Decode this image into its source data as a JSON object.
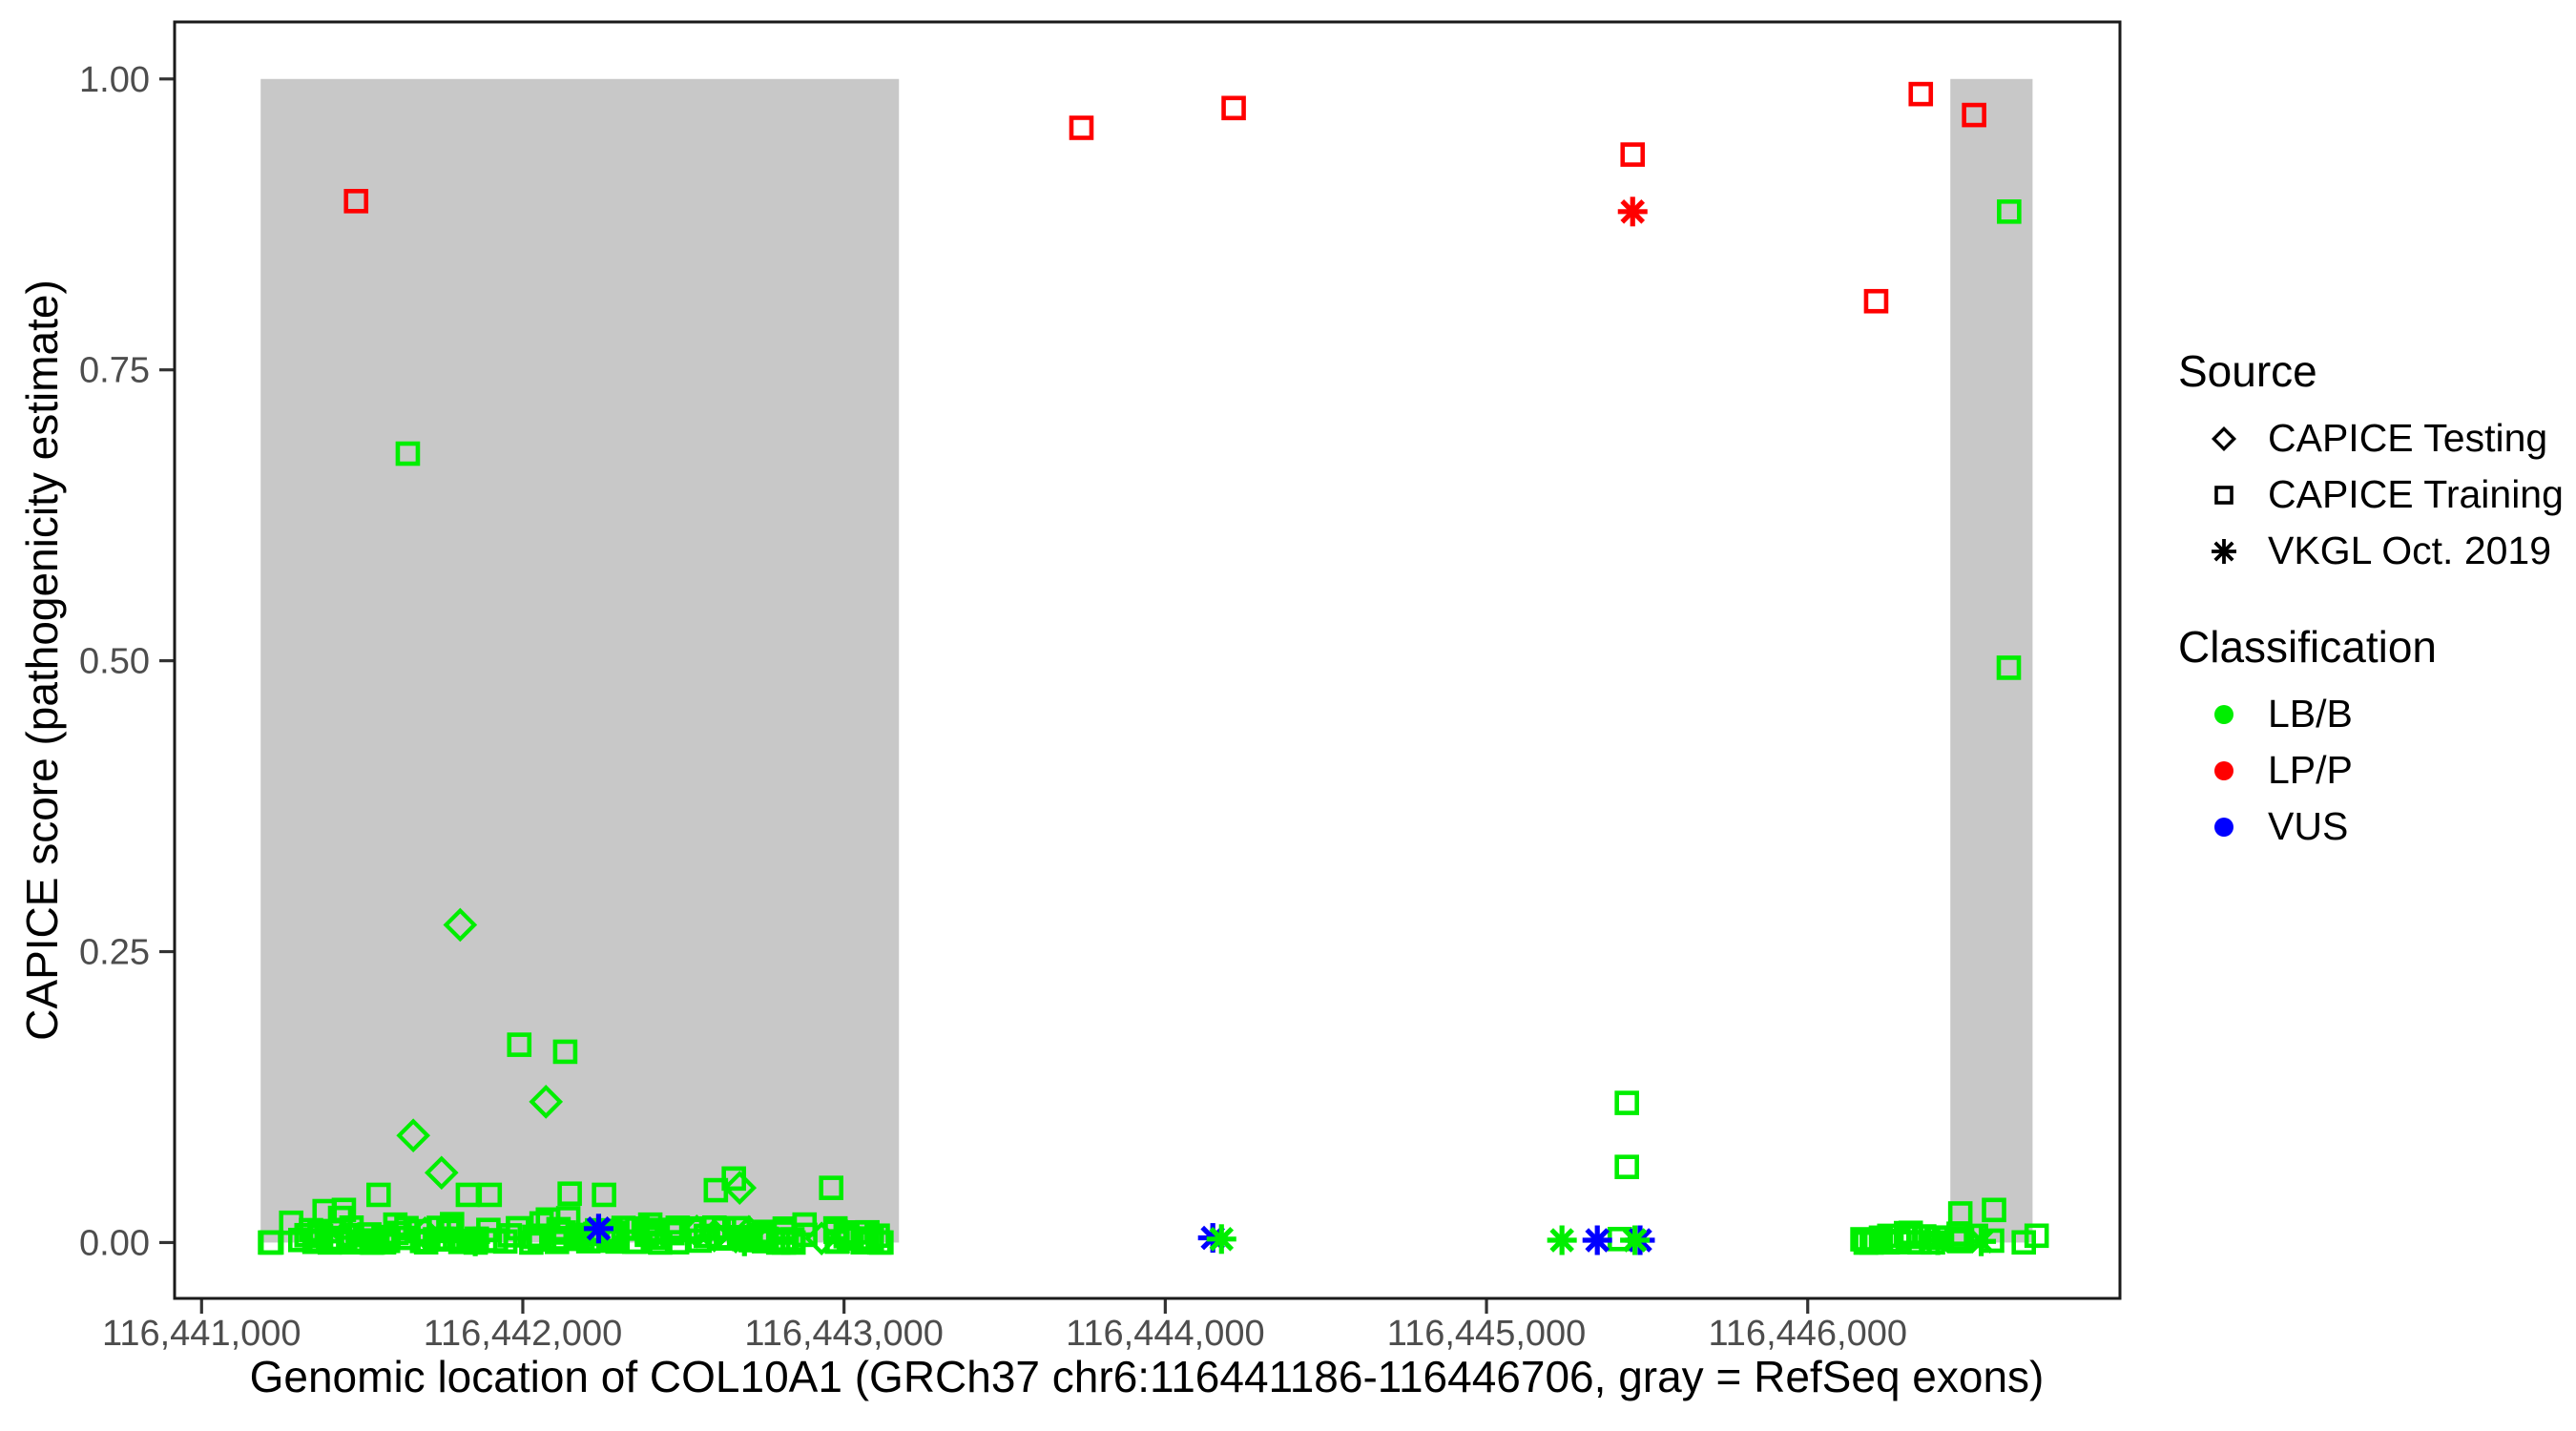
{
  "figure": {
    "xlabel": "Genomic location of COL10A1 (GRCh37 chr6:116441186-116446706, gray = RefSeq exons)",
    "ylabel": "CAPICE score (pathogenicity estimate)"
  },
  "legend": {
    "source_title": "Source",
    "source_items": [
      {
        "label": "CAPICE Testing",
        "marker": "diamond"
      },
      {
        "label": "CAPICE Training",
        "marker": "square"
      },
      {
        "label": "VKGL Oct. 2019",
        "marker": "asterisk"
      }
    ],
    "classification_title": "Classification",
    "classification_items": [
      {
        "label": "LB/B",
        "color": "#00EE00"
      },
      {
        "label": "LP/P",
        "color": "#FF0000"
      },
      {
        "label": "VUS",
        "color": "#0000FF"
      }
    ]
  },
  "chart_data": {
    "type": "scatter",
    "title": "",
    "xlabel": "Genomic location of COL10A1 (GRCh37 chr6:116441186-116446706, gray = RefSeq exons)",
    "ylabel": "CAPICE score (pathogenicity estimate)",
    "xlim": [
      116440916,
      116446972
    ],
    "ylim": [
      -0.048,
      1.049
    ],
    "x_ticks": [
      116441000,
      116442000,
      116443000,
      116444000,
      116445000,
      116446000
    ],
    "x_tick_labels": [
      "116,441,000",
      "116,442,000",
      "116,443,000",
      "116,444,000",
      "116,445,000",
      "116,446,000"
    ],
    "y_ticks": [
      0.0,
      0.25,
      0.5,
      0.75,
      1.0
    ],
    "y_tick_labels": [
      "0.00",
      "0.25",
      "0.50",
      "0.75",
      "1.00"
    ],
    "grid": false,
    "legend_position": "right",
    "exon_note": "gray = RefSeq exons",
    "exon_color": "#C8C8C8",
    "class_colors": {
      "LB/B": "#00EE00",
      "LP/P": "#FF0000",
      "VUS": "#0000FF"
    },
    "marker_by_source": {
      "testing": "diamond",
      "training": "square",
      "vkgl": "asterisk"
    },
    "exon_regions": [
      {
        "x_start": 116441184,
        "x_end": 116443171,
        "y_min": 0.0,
        "y_max": 1.0
      },
      {
        "x_start": 116446444,
        "x_end": 116446700,
        "y_min": 0.0,
        "y_max": 1.0
      }
    ],
    "points": [
      [
        116441642,
        0.678,
        "training",
        "LB/B"
      ],
      [
        116446627,
        0.886,
        "training",
        "LB/B"
      ],
      [
        116446626,
        0.494,
        "training",
        "LB/B"
      ],
      [
        116441805,
        0.273,
        "testing",
        "LB/B"
      ],
      [
        116441989,
        0.17,
        "training",
        "LB/B"
      ],
      [
        116442132,
        0.164,
        "training",
        "LB/B"
      ],
      [
        116442072,
        0.121,
        "testing",
        "LB/B"
      ],
      [
        116441659,
        0.092,
        "testing",
        "LB/B"
      ],
      [
        116441747,
        0.06,
        "testing",
        "LB/B"
      ],
      [
        116445437,
        0.12,
        "training",
        "LB/B"
      ],
      [
        116445437,
        0.065,
        "training",
        "LB/B"
      ],
      [
        116441551,
        0.041,
        "training",
        "LB/B"
      ],
      [
        116441829,
        0.041,
        "training",
        "LB/B"
      ],
      [
        116441897,
        0.041,
        "training",
        "LB/B"
      ],
      [
        116442146,
        0.042,
        "training",
        "LB/B"
      ],
      [
        116442253,
        0.041,
        "training",
        "LB/B"
      ],
      [
        116442657,
        0.055,
        "training",
        "LB/B"
      ],
      [
        116442675,
        0.047,
        "testing",
        "LB/B"
      ],
      [
        116442601,
        0.045,
        "training",
        "LB/B"
      ],
      [
        116442960,
        0.047,
        "training",
        "LB/B"
      ],
      [
        116441383,
        0.027,
        "training",
        "LB/B"
      ],
      [
        116441443,
        0.028,
        "training",
        "LB/B"
      ],
      [
        116441279,
        0.017,
        "training",
        "LB/B"
      ],
      [
        116446475,
        0.025,
        "training",
        "LB/B"
      ],
      [
        116446580,
        0.028,
        "training",
        "LB/B"
      ],
      [
        116445415,
        0.003,
        "training",
        "LB/B"
      ],
      [
        116442236,
        0.012,
        "vkgl",
        "VUS"
      ],
      [
        116444148,
        0.004,
        "vkgl",
        "VUS"
      ],
      [
        116445345,
        0.002,
        "vkgl",
        "VUS"
      ],
      [
        116445478,
        0.002,
        "vkgl",
        "VUS"
      ],
      [
        116444175,
        0.003,
        "vkgl",
        "LB/B"
      ],
      [
        116445235,
        0.002,
        "vkgl",
        "LB/B"
      ],
      [
        116445462,
        0.002,
        "vkgl",
        "LB/B"
      ],
      [
        116441852,
        0.001,
        "vkgl",
        "LB/B"
      ],
      [
        116442690,
        0.001,
        "vkgl",
        "LB/B"
      ],
      [
        116446405,
        0.002,
        "vkgl",
        "LB/B"
      ],
      [
        116446540,
        0.001,
        "vkgl",
        "LB/B"
      ],
      [
        116441481,
        0.895,
        "training",
        "LP/P"
      ],
      [
        116443739,
        0.958,
        "training",
        "LP/P"
      ],
      [
        116444213,
        0.975,
        "training",
        "LP/P"
      ],
      [
        116445455,
        0.935,
        "training",
        "LP/P"
      ],
      [
        116446213,
        0.809,
        "training",
        "LP/P"
      ],
      [
        116446352,
        0.987,
        "training",
        "LP/P"
      ],
      [
        116446518,
        0.969,
        "training",
        "LP/P"
      ],
      [
        116445455,
        0.886,
        "vkgl",
        "LP/P"
      ]
    ],
    "dense_clusters": [
      {
        "marker": "square",
        "source": "training",
        "cls": "LB/B",
        "x_range": [
          116441195,
          116443150
        ],
        "y_range": [
          0.0,
          0.013
        ],
        "count": 135,
        "seed": 7,
        "bias": 2.2
      },
      {
        "marker": "square",
        "source": "training",
        "cls": "LB/B",
        "x_range": [
          116446160,
          116446715
        ],
        "y_range": [
          0.0,
          0.01
        ],
        "count": 28,
        "seed": 13,
        "bias": 2.0
      },
      {
        "marker": "square",
        "source": "training",
        "cls": "LB/B",
        "x_range": [
          116441250,
          116443120
        ],
        "y_range": [
          0.012,
          0.022
        ],
        "count": 8,
        "seed": 21,
        "bias": 1.0
      },
      {
        "marker": "diamond",
        "source": "testing",
        "cls": "LB/B",
        "x_range": [
          116441300,
          116443100
        ],
        "y_range": [
          0.001,
          0.012
        ],
        "count": 6,
        "seed": 5,
        "bias": 1.0
      }
    ]
  }
}
